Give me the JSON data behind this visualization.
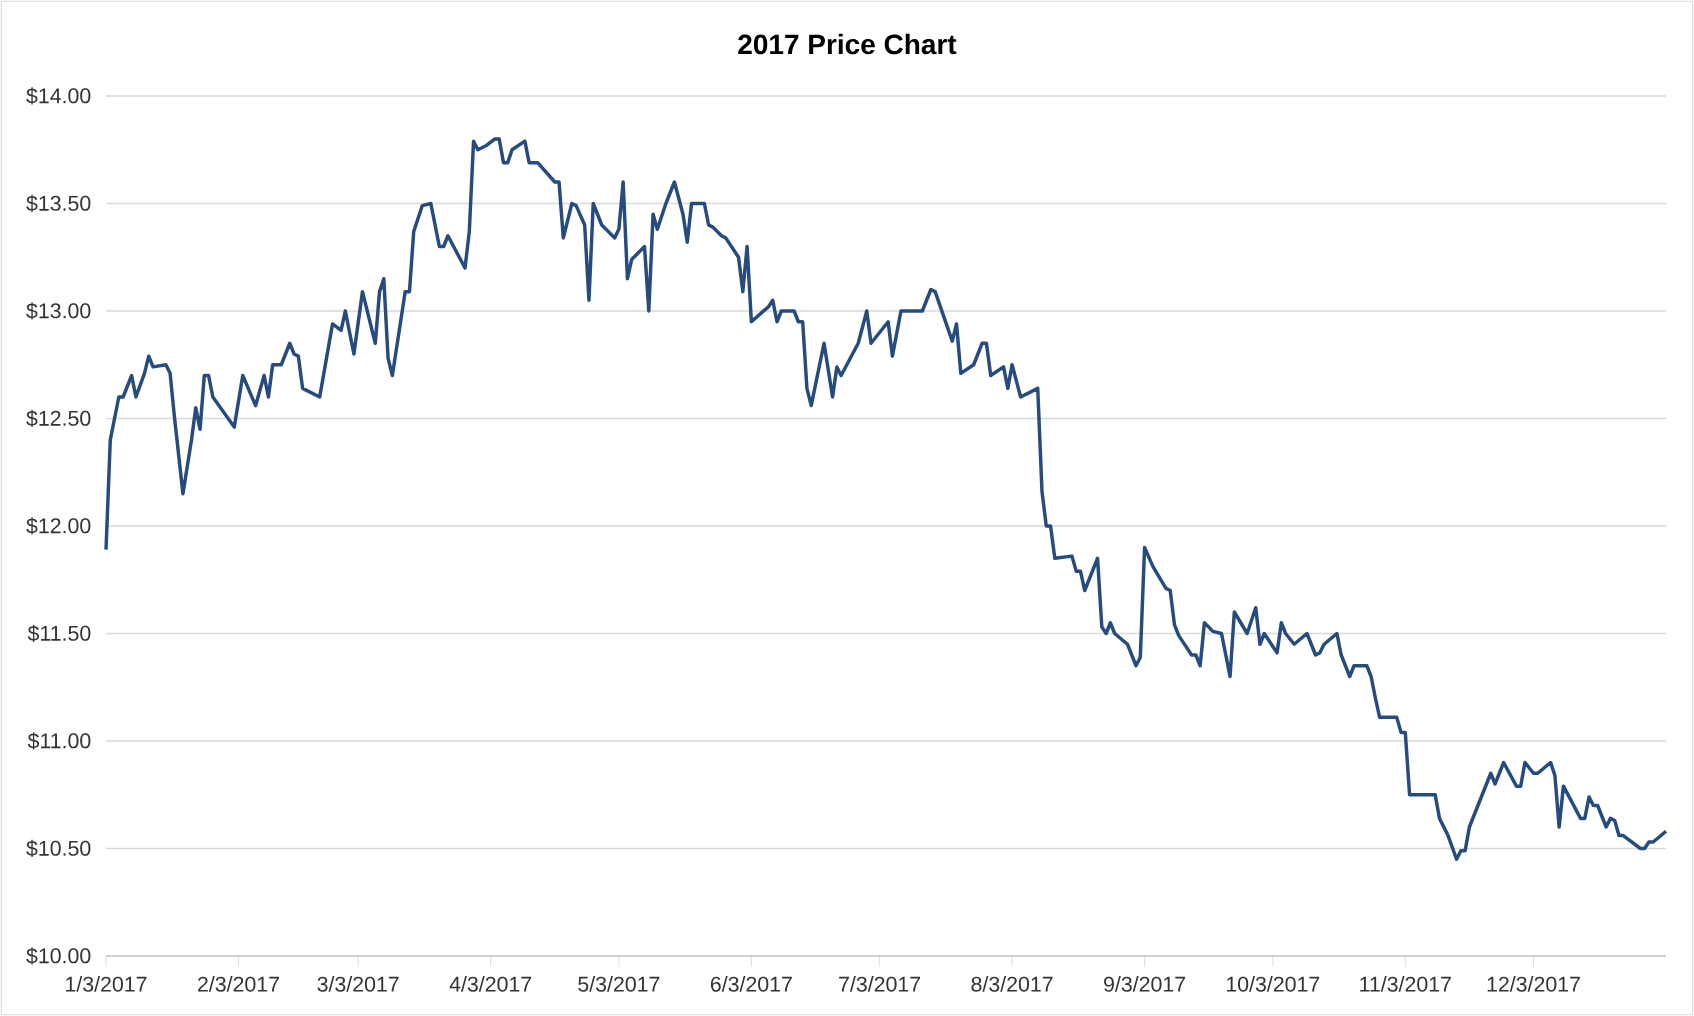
{
  "chart_data": {
    "type": "line",
    "title": "2017 Price Chart",
    "color": "#264b7f",
    "grid": "y",
    "xlim": [
      "2017-01-03",
      "2018-01-03"
    ],
    "ylim": [
      10,
      14
    ],
    "xticks": [
      {
        "value": "2017-01-03",
        "label": "1/3/2017"
      },
      {
        "value": "2017-02-03",
        "label": "2/3/2017"
      },
      {
        "value": "2017-03-03",
        "label": "3/3/2017"
      },
      {
        "value": "2017-04-03",
        "label": "4/3/2017"
      },
      {
        "value": "2017-05-03",
        "label": "5/3/2017"
      },
      {
        "value": "2017-06-03",
        "label": "6/3/2017"
      },
      {
        "value": "2017-07-03",
        "label": "7/3/2017"
      },
      {
        "value": "2017-08-03",
        "label": "8/3/2017"
      },
      {
        "value": "2017-09-03",
        "label": "9/3/2017"
      },
      {
        "value": "2017-10-03",
        "label": "10/3/2017"
      },
      {
        "value": "2017-11-03",
        "label": "11/3/2017"
      },
      {
        "value": "2017-12-03",
        "label": "12/3/2017"
      }
    ],
    "yticks": [
      {
        "value": 10,
        "label": "$10.00"
      },
      {
        "value": 10.5,
        "label": "$10.50"
      },
      {
        "value": 11,
        "label": "$11.00"
      },
      {
        "value": 11.5,
        "label": "$11.50"
      },
      {
        "value": 12,
        "label": "$12.00"
      },
      {
        "value": 12.5,
        "label": "$12.50"
      },
      {
        "value": 13,
        "label": "$13.00"
      },
      {
        "value": 13.5,
        "label": "$13.50"
      },
      {
        "value": 14,
        "label": "$14.00"
      }
    ],
    "x": [
      "2017-01-03",
      "2017-01-04",
      "2017-01-06",
      "2017-01-07",
      "2017-01-09",
      "2017-01-10",
      "2017-01-12",
      "2017-01-13",
      "2017-01-14",
      "2017-01-17",
      "2017-01-18",
      "2017-01-19",
      "2017-01-21",
      "2017-01-23",
      "2017-01-24",
      "2017-01-25",
      "2017-01-26",
      "2017-01-27",
      "2017-01-28",
      "2017-02-02",
      "2017-02-04",
      "2017-02-07",
      "2017-02-09",
      "2017-02-10",
      "2017-02-11",
      "2017-02-13",
      "2017-02-15",
      "2017-02-16",
      "2017-02-17",
      "2017-02-18",
      "2017-02-22",
      "2017-02-25",
      "2017-02-27",
      "2017-02-28",
      "2017-03-02",
      "2017-03-04",
      "2017-03-07",
      "2017-03-08",
      "2017-03-09",
      "2017-03-10",
      "2017-03-11",
      "2017-03-14",
      "2017-03-15",
      "2017-03-16",
      "2017-03-18",
      "2017-03-20",
      "2017-03-22",
      "2017-03-23",
      "2017-03-24",
      "2017-03-28",
      "2017-03-29",
      "2017-03-30",
      "2017-03-31",
      "2017-04-02",
      "2017-04-04",
      "2017-04-05",
      "2017-04-06",
      "2017-04-07",
      "2017-04-08",
      "2017-04-11",
      "2017-04-12",
      "2017-04-14",
      "2017-04-18",
      "2017-04-19",
      "2017-04-20",
      "2017-04-22",
      "2017-04-23",
      "2017-04-25",
      "2017-04-26",
      "2017-04-27",
      "2017-04-29",
      "2017-05-02",
      "2017-05-03",
      "2017-05-04",
      "2017-05-05",
      "2017-05-06",
      "2017-05-09",
      "2017-05-10",
      "2017-05-11",
      "2017-05-12",
      "2017-05-14",
      "2017-05-16",
      "2017-05-18",
      "2017-05-19",
      "2017-05-20",
      "2017-05-23",
      "2017-05-24",
      "2017-05-25",
      "2017-05-27",
      "2017-05-28",
      "2017-05-31",
      "2017-06-01",
      "2017-06-02",
      "2017-06-03",
      "2017-06-07",
      "2017-06-08",
      "2017-06-09",
      "2017-06-10",
      "2017-06-13",
      "2017-06-14",
      "2017-06-15",
      "2017-06-16",
      "2017-06-17",
      "2017-06-20",
      "2017-06-22",
      "2017-06-23",
      "2017-06-24",
      "2017-06-28",
      "2017-06-30",
      "2017-07-01",
      "2017-07-05",
      "2017-07-06",
      "2017-07-08",
      "2017-07-13",
      "2017-07-15",
      "2017-07-16",
      "2017-07-20",
      "2017-07-21",
      "2017-07-22",
      "2017-07-25",
      "2017-07-27",
      "2017-07-28",
      "2017-07-29",
      "2017-08-01",
      "2017-08-02",
      "2017-08-03",
      "2017-08-05",
      "2017-08-09",
      "2017-08-10",
      "2017-08-11",
      "2017-08-12",
      "2017-08-13",
      "2017-08-17",
      "2017-08-18",
      "2017-08-19",
      "2017-08-20",
      "2017-08-23",
      "2017-08-24",
      "2017-08-25",
      "2017-08-26",
      "2017-08-27",
      "2017-08-30",
      "2017-09-01",
      "2017-09-02",
      "2017-09-03",
      "2017-09-05",
      "2017-09-08",
      "2017-09-09",
      "2017-09-10",
      "2017-09-11",
      "2017-09-14",
      "2017-09-15",
      "2017-09-16",
      "2017-09-17",
      "2017-09-19",
      "2017-09-21",
      "2017-09-23",
      "2017-09-24",
      "2017-09-27",
      "2017-09-29",
      "2017-09-30",
      "2017-10-01",
      "2017-10-04",
      "2017-10-05",
      "2017-10-06",
      "2017-10-08",
      "2017-10-11",
      "2017-10-13",
      "2017-10-14",
      "2017-10-15",
      "2017-10-18",
      "2017-10-19",
      "2017-10-21",
      "2017-10-22",
      "2017-10-25",
      "2017-10-26",
      "2017-10-27",
      "2017-10-28",
      "2017-11-01",
      "2017-11-02",
      "2017-11-03",
      "2017-11-04",
      "2017-11-10",
      "2017-11-11",
      "2017-11-13",
      "2017-11-15",
      "2017-11-16",
      "2017-11-17",
      "2017-11-18",
      "2017-11-19",
      "2017-11-23",
      "2017-11-24",
      "2017-11-26",
      "2017-11-29",
      "2017-11-30",
      "2017-12-01",
      "2017-12-03",
      "2017-12-04",
      "2017-12-07",
      "2017-12-08",
      "2017-12-09",
      "2017-12-10",
      "2017-12-14",
      "2017-12-15",
      "2017-12-16",
      "2017-12-17",
      "2017-12-18",
      "2017-12-20",
      "2017-12-21",
      "2017-12-22",
      "2017-12-23",
      "2017-12-24",
      "2017-12-28",
      "2017-12-29",
      "2017-12-30",
      "2017-12-31",
      "2018-01-03"
    ],
    "values": [
      11.89,
      12.4,
      12.6,
      12.6,
      12.7,
      12.6,
      12.71,
      12.79,
      12.74,
      12.75,
      12.71,
      12.51,
      12.15,
      12.4,
      12.55,
      12.45,
      12.7,
      12.7,
      12.6,
      12.46,
      12.7,
      12.56,
      12.7,
      12.6,
      12.75,
      12.75,
      12.85,
      12.8,
      12.79,
      12.64,
      12.6,
      12.94,
      12.91,
      13.0,
      12.8,
      13.09,
      12.85,
      13.09,
      13.15,
      12.78,
      12.7,
      13.09,
      13.09,
      13.37,
      13.49,
      13.5,
      13.3,
      13.3,
      13.35,
      13.2,
      13.37,
      13.79,
      13.75,
      13.77,
      13.8,
      13.8,
      13.69,
      13.69,
      13.75,
      13.79,
      13.69,
      13.69,
      13.6,
      13.6,
      13.34,
      13.5,
      13.49,
      13.4,
      13.05,
      13.5,
      13.4,
      13.34,
      13.38,
      13.6,
      13.15,
      13.24,
      13.3,
      13.0,
      13.45,
      13.38,
      13.5,
      13.6,
      13.45,
      13.32,
      13.5,
      13.5,
      13.4,
      13.39,
      13.35,
      13.34,
      13.25,
      13.09,
      13.3,
      12.95,
      13.02,
      13.05,
      12.95,
      13.0,
      13.0,
      12.95,
      12.95,
      12.64,
      12.56,
      12.85,
      12.6,
      12.74,
      12.7,
      12.85,
      13.0,
      12.85,
      12.95,
      12.79,
      13.0,
      13.0,
      13.1,
      13.09,
      12.86,
      12.94,
      12.71,
      12.75,
      12.85,
      12.85,
      12.7,
      12.74,
      12.64,
      12.75,
      12.6,
      12.64,
      12.16,
      12.0,
      12.0,
      11.85,
      11.86,
      11.79,
      11.79,
      11.7,
      11.85,
      11.53,
      11.5,
      11.55,
      11.5,
      11.45,
      11.35,
      11.39,
      11.9,
      11.81,
      11.71,
      11.7,
      11.54,
      11.49,
      11.4,
      11.4,
      11.35,
      11.55,
      11.51,
      11.5,
      11.3,
      11.6,
      11.5,
      11.62,
      11.45,
      11.5,
      11.41,
      11.55,
      11.5,
      11.45,
      11.5,
      11.4,
      11.41,
      11.45,
      11.5,
      11.4,
      11.3,
      11.35,
      11.35,
      11.3,
      11.2,
      11.11,
      11.11,
      11.04,
      11.04,
      10.75,
      10.75,
      10.64,
      10.56,
      10.45,
      10.49,
      10.49,
      10.6,
      10.65,
      10.85,
      10.8,
      10.9,
      10.79,
      10.79,
      10.9,
      10.85,
      10.85,
      10.9,
      10.84,
      10.6,
      10.79,
      10.64,
      10.64,
      10.74,
      10.7,
      10.7,
      10.6,
      10.64,
      10.63,
      10.56,
      10.56,
      10.5,
      10.5,
      10.53,
      10.53,
      10.58
    ]
  }
}
